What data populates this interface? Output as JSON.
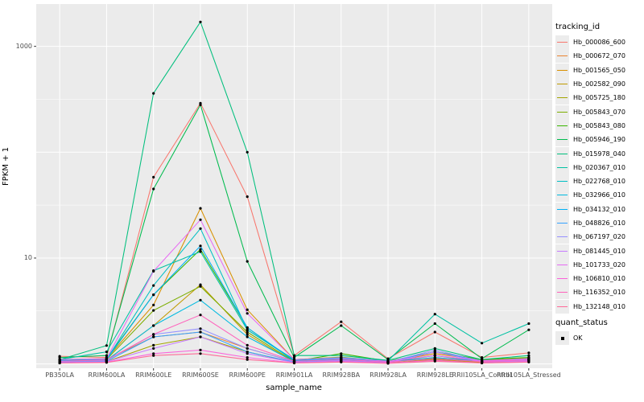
{
  "chart_data": {
    "type": "line",
    "title": "",
    "xlabel": "sample_name",
    "ylabel": "FPKM + 1",
    "yscale": "log10",
    "ylim": [
      1,
      2500
    ],
    "grid": true,
    "legend_position": "right",
    "legend_title": "tracking_id",
    "y_ticks": [
      {
        "value": 1000,
        "label": "1000"
      },
      {
        "value": 10,
        "label": "10"
      }
    ],
    "gridlines_major_values": [
      1,
      10,
      100,
      1000
    ],
    "gridlines_minor_exponents": [
      0.5,
      1.5,
      2.5
    ],
    "categories": [
      "PB350LA",
      "RRIM600LA",
      "RRIM600LE",
      "RRIM600SE",
      "RRIM600PE",
      "RRIM901LA",
      "RRIM928BA",
      "RRIM928LA",
      "RRIM928LE",
      "RRII105LA_Control",
      "RRII105LA_Stressed"
    ],
    "series": [
      {
        "name": "Hb_000086_600",
        "color": "#F8766D",
        "values": [
          1.18,
          1.15,
          58,
          290,
          38,
          1.2,
          2.5,
          1.12,
          2.0,
          1.15,
          1.27
        ]
      },
      {
        "name": "Hb_000672_070",
        "color": "#EA8331",
        "values": [
          1.05,
          1.1,
          1.8,
          2.0,
          1.4,
          1.05,
          1.1,
          1.03,
          1.2,
          1.04,
          1.1
        ]
      },
      {
        "name": "Hb_001565_050",
        "color": "#D89000",
        "values": [
          1.1,
          1.12,
          3.6,
          29.5,
          3.25,
          1.1,
          1.16,
          1.05,
          1.25,
          1.08,
          1.14
        ]
      },
      {
        "name": "Hb_002582_090",
        "color": "#C09B00",
        "values": [
          1.04,
          1.08,
          2.3,
          5.6,
          1.9,
          1.04,
          1.1,
          1.04,
          1.12,
          1.03,
          1.08
        ]
      },
      {
        "name": "Hb_005725_180",
        "color": "#A3A500",
        "values": [
          1.02,
          1.05,
          1.5,
          1.8,
          1.3,
          1.03,
          1.06,
          1.02,
          1.1,
          1.02,
          1.05
        ]
      },
      {
        "name": "Hb_005843_070",
        "color": "#7CAE00",
        "values": [
          1.06,
          1.1,
          3.2,
          5.4,
          2.0,
          1.05,
          1.1,
          1.04,
          1.14,
          1.05,
          1.1
        ]
      },
      {
        "name": "Hb_005843_080",
        "color": "#39B600",
        "values": [
          1.08,
          1.12,
          4.5,
          12.1,
          2.2,
          1.06,
          1.25,
          1.06,
          1.3,
          1.1,
          1.15
        ]
      },
      {
        "name": "Hb_005946_190",
        "color": "#00BB4E",
        "values": [
          1.15,
          1.2,
          45,
          280,
          9.3,
          1.15,
          2.3,
          1.1,
          2.4,
          1.12,
          2.1
        ]
      },
      {
        "name": "Hb_015978_040",
        "color": "#00BF7D",
        "values": [
          1.1,
          1.49,
          360,
          1700,
          100,
          1.2,
          1.2,
          1.08,
          1.4,
          1.1,
          1.2
        ]
      },
      {
        "name": "Hb_020367_010",
        "color": "#00C1A3",
        "values": [
          1.1,
          1.3,
          7.6,
          11.5,
          2.1,
          1.1,
          1.15,
          1.07,
          2.95,
          1.57,
          2.4
        ]
      },
      {
        "name": "Hb_022768_010",
        "color": "#00BFC4",
        "values": [
          1.08,
          1.1,
          5.5,
          19,
          2.1,
          1.08,
          1.12,
          1.05,
          1.3,
          1.07,
          1.12
        ]
      },
      {
        "name": "Hb_032966_010",
        "color": "#00BAE0",
        "values": [
          1.05,
          1.08,
          2.3,
          4.0,
          1.8,
          1.05,
          1.1,
          1.04,
          1.15,
          1.05,
          1.1
        ]
      },
      {
        "name": "Hb_034132_010",
        "color": "#00B0F6",
        "values": [
          1.07,
          1.1,
          4.5,
          13,
          2.2,
          1.07,
          1.12,
          1.05,
          1.2,
          1.06,
          1.1
        ]
      },
      {
        "name": "Hb_048826_010",
        "color": "#35A2FF",
        "values": [
          1.04,
          1.06,
          1.8,
          2.0,
          1.3,
          1.04,
          1.08,
          1.03,
          1.3,
          1.05,
          1.08
        ]
      },
      {
        "name": "Hb_067197_020",
        "color": "#9590FF",
        "values": [
          1.05,
          1.08,
          1.9,
          2.15,
          1.4,
          1.05,
          1.1,
          1.04,
          1.35,
          1.06,
          1.1
        ]
      },
      {
        "name": "Hb_081445_010",
        "color": "#C77CFF",
        "values": [
          1.03,
          1.05,
          1.4,
          1.8,
          1.25,
          1.03,
          1.07,
          1.02,
          1.3,
          1.04,
          1.07
        ]
      },
      {
        "name": "Hb_101733_020",
        "color": "#E76BF3",
        "values": [
          1.1,
          1.12,
          7.5,
          23,
          3.0,
          1.1,
          1.14,
          1.06,
          1.2,
          1.07,
          1.12
        ]
      },
      {
        "name": "Hb_106810_010",
        "color": "#FA62DB",
        "values": [
          1.02,
          1.04,
          1.25,
          1.35,
          1.15,
          1.02,
          1.05,
          1.02,
          1.08,
          1.02,
          1.05
        ]
      },
      {
        "name": "Hb_116352_010",
        "color": "#FF62BC",
        "values": [
          1.06,
          1.09,
          1.9,
          2.9,
          1.5,
          1.06,
          1.1,
          1.04,
          1.12,
          1.05,
          1.09
        ]
      },
      {
        "name": "Hb_132148_010",
        "color": "#FF6A98",
        "values": [
          1.02,
          1.03,
          1.2,
          1.25,
          1.1,
          1.02,
          1.04,
          1.01,
          1.06,
          1.02,
          1.04
        ]
      }
    ],
    "points": {
      "shape": "square-dot",
      "color": "#000000",
      "legend": "quant_status",
      "items": [
        {
          "label": "OK"
        }
      ]
    },
    "panel_background": "#EBEBEB",
    "gridline_color": "#FFFFFF",
    "tick_text_color": "#4d4d4d"
  }
}
